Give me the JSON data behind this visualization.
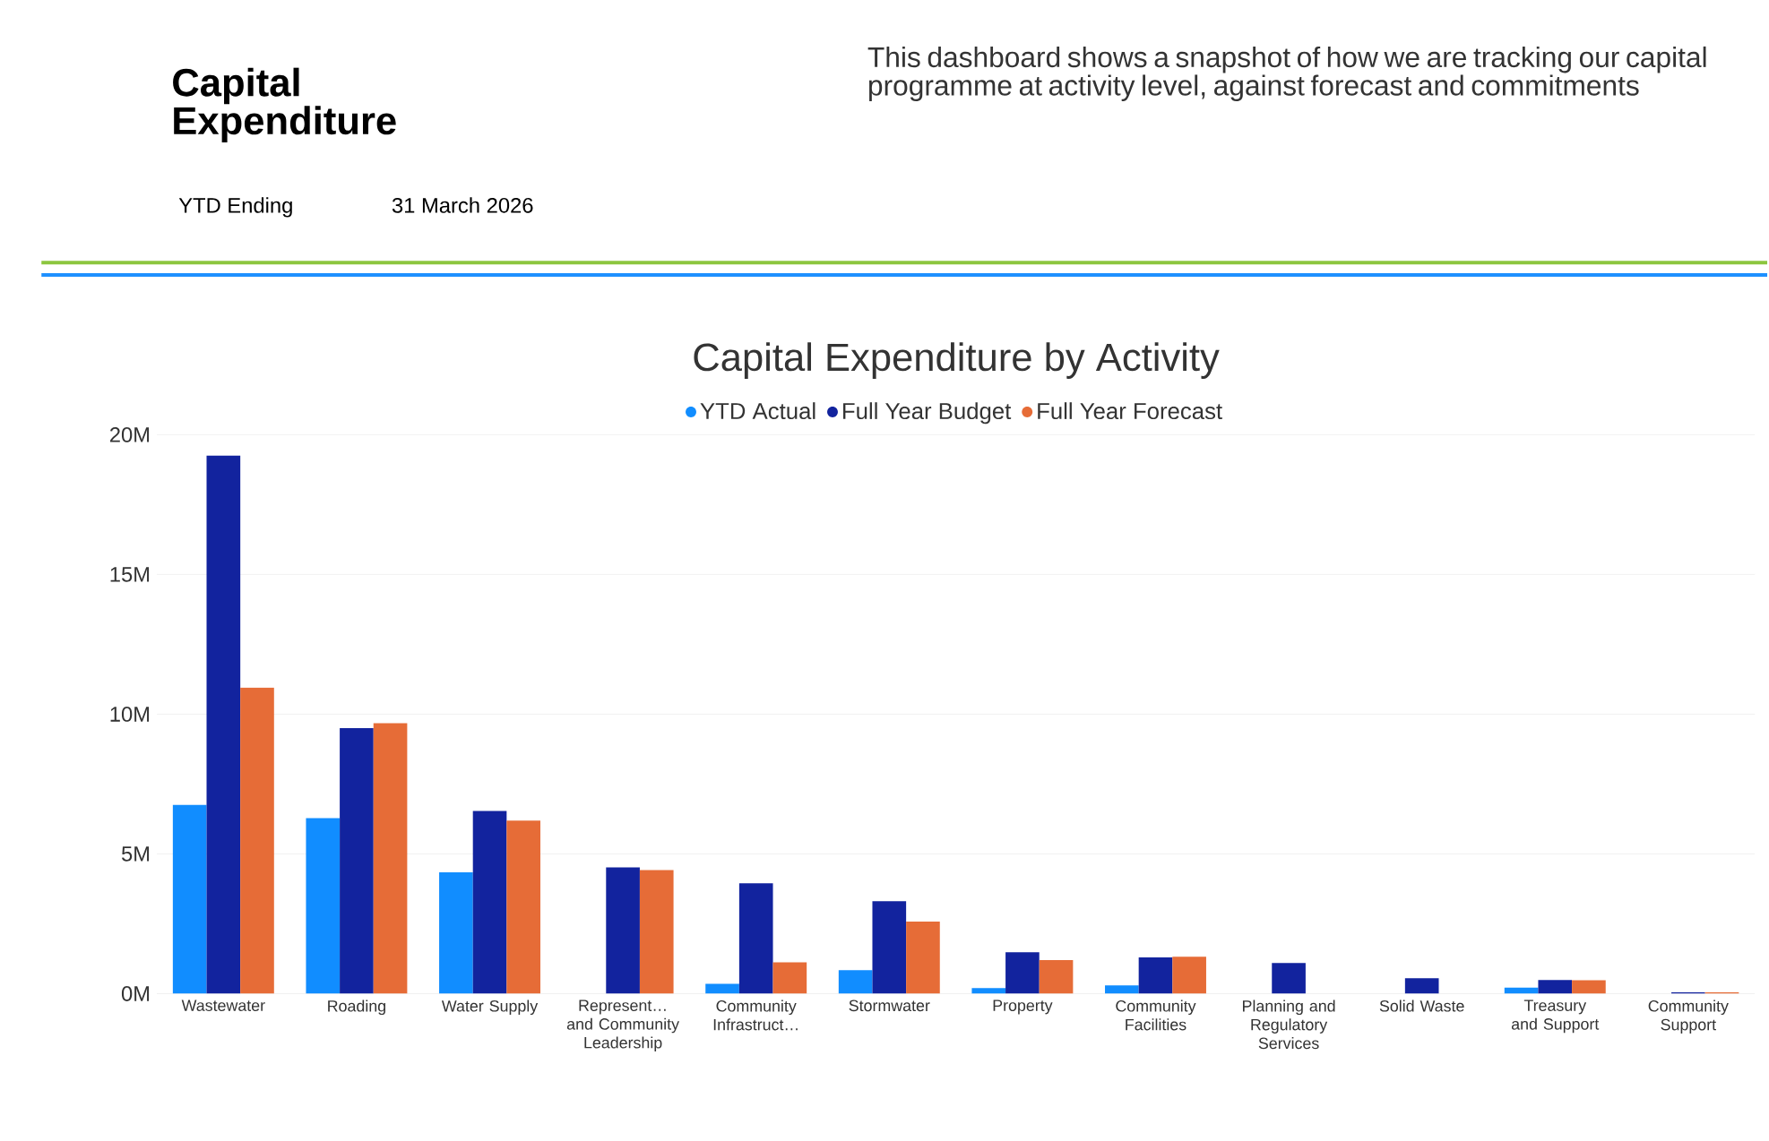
{
  "chart_data": {
    "type": "bar",
    "title": "Capital Expenditure by Activity",
    "annotations": [
      "Capital Expenditure",
      "YTD Ending",
      "31 March 2026",
      "This dashboard shows a snapshot of how we are tracking our capital programme at activity level, against forecast and commitments"
    ],
    "categories": [
      "Wastewater",
      "Roading",
      "Water Supply",
      "Represent… and Community Leadership",
      "Community Infrastruct…",
      "Stormwater",
      "Property",
      "Community Facilities",
      "Planning and Regulatory Services",
      "Solid Waste",
      "Treasury and Support",
      "Community Support"
    ],
    "series": [
      {
        "name": "YTD Actual",
        "color": "#118dff",
        "values": [
          6.75,
          6.28,
          4.34,
          0,
          0.35,
          0.84,
          0.2,
          0.3,
          null,
          null,
          0.22,
          null
        ]
      },
      {
        "name": "Full Year Budget",
        "color": "#12239e",
        "values": [
          19.25,
          9.5,
          6.54,
          4.52,
          3.95,
          3.31,
          1.48,
          1.3,
          1.1,
          0.55,
          0.49,
          0.05
        ]
      },
      {
        "name": "Full Year Forecast",
        "color": "#e66c37",
        "values": [
          10.95,
          9.68,
          6.19,
          4.42,
          1.12,
          2.58,
          1.2,
          1.32,
          null,
          null,
          0.48,
          0.05
        ]
      }
    ],
    "ylim": [
      0,
      20
    ],
    "yticks": [
      {
        "value": 0,
        "label": "0M"
      },
      {
        "value": 5,
        "label": "5M"
      },
      {
        "value": 10,
        "label": "10M"
      },
      {
        "value": 15,
        "label": "15M"
      },
      {
        "value": 20,
        "label": "20M"
      }
    ],
    "grid": "y",
    "legend": "top"
  }
}
